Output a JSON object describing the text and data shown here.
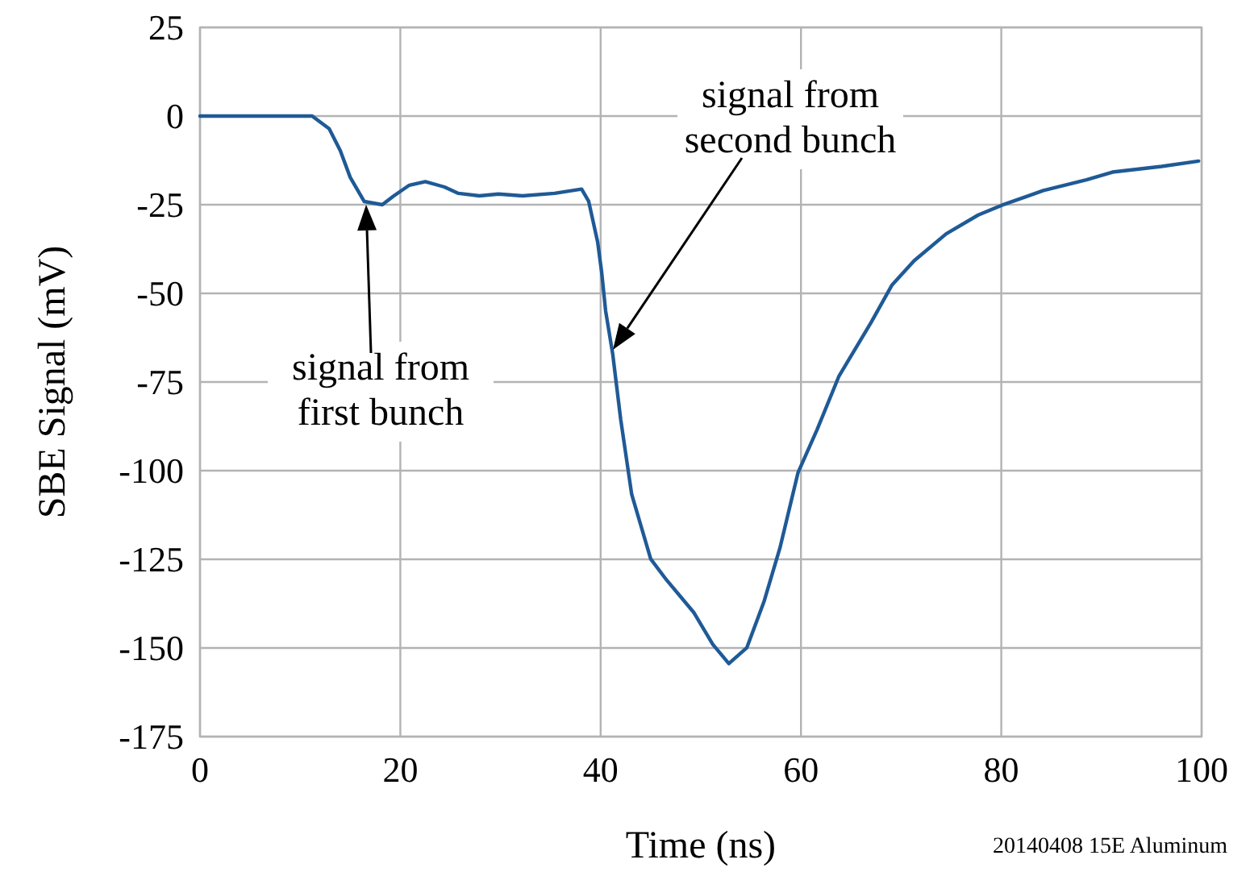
{
  "chart_data": {
    "type": "line",
    "xlabel": "Time (ns)",
    "ylabel": "SBE Signal (mV)",
    "xlim": [
      0,
      100
    ],
    "ylim": [
      -175,
      25
    ],
    "xticks": [
      0,
      20,
      40,
      60,
      80,
      100
    ],
    "yticks": [
      25,
      0,
      -25,
      -50,
      -75,
      -100,
      -125,
      -150,
      -175
    ],
    "grid": true,
    "marker": "none",
    "line_style": "solid",
    "series": [
      {
        "color": "#1f5a96",
        "x": [
          0,
          11.2,
          12.9,
          14.0,
          15.0,
          16.4,
          18.2,
          19.3,
          20.9,
          22.5,
          24.4,
          25.8,
          27.9,
          29.8,
          32.2,
          35.4,
          38.1,
          38.8,
          39.7,
          40.1,
          40.5,
          41.2,
          42.0,
          43.1,
          45.0,
          46.6,
          49.3,
          51.2,
          52.8,
          54.6,
          56.3,
          57.9,
          59.7,
          61.6,
          63.8,
          67.0,
          69.1,
          71.3,
          74.5,
          77.7,
          80.1,
          84.2,
          88.5,
          91.1,
          96.0,
          99.7
        ],
        "values": [
          0,
          0,
          -3.6,
          -9.7,
          -17.3,
          -24.1,
          -25,
          -22.6,
          -19.5,
          -18.5,
          -20,
          -21.8,
          -22.5,
          -22,
          -22.5,
          -21.8,
          -20.6,
          -24,
          -35.5,
          -44,
          -55,
          -67,
          -85.5,
          -106.7,
          -124.9,
          -130.9,
          -140,
          -149,
          -154.4,
          -149.9,
          -137,
          -121.8,
          -100.6,
          -88.5,
          -73.3,
          -58.2,
          -47.6,
          -40.8,
          -33.2,
          -27.9,
          -25.1,
          -21,
          -18,
          -15.8,
          -14.2,
          -12.7
        ]
      }
    ],
    "annotations": [
      "signal from\nfirst bunch",
      "signal from\nsecond bunch",
      "20140408 15E Aluminum"
    ]
  }
}
